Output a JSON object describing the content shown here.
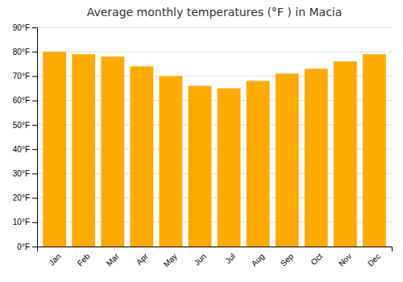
{
  "chart_data": {
    "type": "bar",
    "title": "Average monthly temperatures (°F ) in Macia",
    "categories": [
      "Jan",
      "Feb",
      "Mar",
      "Apr",
      "May",
      "Jun",
      "Jul",
      "Aug",
      "Sep",
      "Oct",
      "Nov",
      "Dec"
    ],
    "values": [
      80,
      79,
      78,
      74,
      70,
      66,
      65,
      68,
      71,
      73,
      76,
      79
    ],
    "color": "#FFAA00",
    "ylim": [
      0,
      90
    ],
    "yticks": [
      {
        "value": 0,
        "label": "0°F"
      },
      {
        "value": 10,
        "label": "10°F"
      },
      {
        "value": 20,
        "label": "20°F"
      },
      {
        "value": 30,
        "label": "30°F"
      },
      {
        "value": 40,
        "label": "40°F"
      },
      {
        "value": 50,
        "label": "50°F"
      },
      {
        "value": 60,
        "label": "60°F"
      },
      {
        "value": 70,
        "label": "70°F"
      },
      {
        "value": 80,
        "label": "80°F"
      },
      {
        "value": 90,
        "label": "90°F"
      }
    ],
    "grid": true
  }
}
